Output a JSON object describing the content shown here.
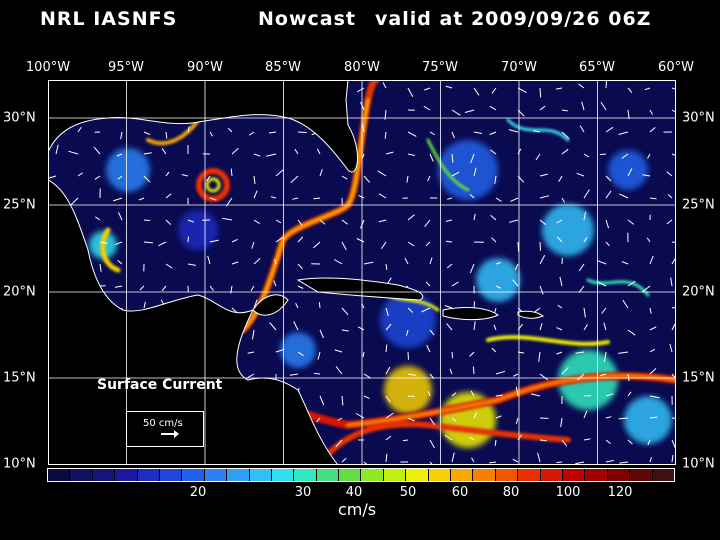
{
  "title": {
    "name": "NRL IASNFS",
    "type": "Nowcast",
    "valid": "valid at 2009/09/26 06Z"
  },
  "lon_labels": [
    "100°W",
    "95°W",
    "90°W",
    "85°W",
    "80°W",
    "75°W",
    "70°W",
    "65°W",
    "60°W"
  ],
  "lat_labels": [
    "30°N",
    "25°N",
    "20°N",
    "15°N",
    "10°N"
  ],
  "colorbar": {
    "ticks": [
      "20",
      "30",
      "40",
      "50",
      "60",
      "80",
      "100",
      "120"
    ],
    "units": "cm/s",
    "colors": [
      "#0a0a40",
      "#101060",
      "#15157e",
      "#1a1aa0",
      "#1e2cc0",
      "#1f46d8",
      "#2060e8",
      "#2a80f4",
      "#2ea0f8",
      "#30c0f8",
      "#30e0f0",
      "#30e8c0",
      "#40e080",
      "#60e040",
      "#90e820",
      "#c0f010",
      "#f0f000",
      "#f8d000",
      "#f8a800",
      "#f88000",
      "#f05800",
      "#e83000",
      "#d81800",
      "#c00000",
      "#a00000",
      "#800000",
      "#600808",
      "#401010"
    ]
  },
  "legend": {
    "title": "Surface Current",
    "scale": "50 cm/s"
  },
  "colors": {
    "background": "#000000",
    "ocean_base": "#0a0a50",
    "land": "#000000",
    "coast": "#ffffff"
  }
}
